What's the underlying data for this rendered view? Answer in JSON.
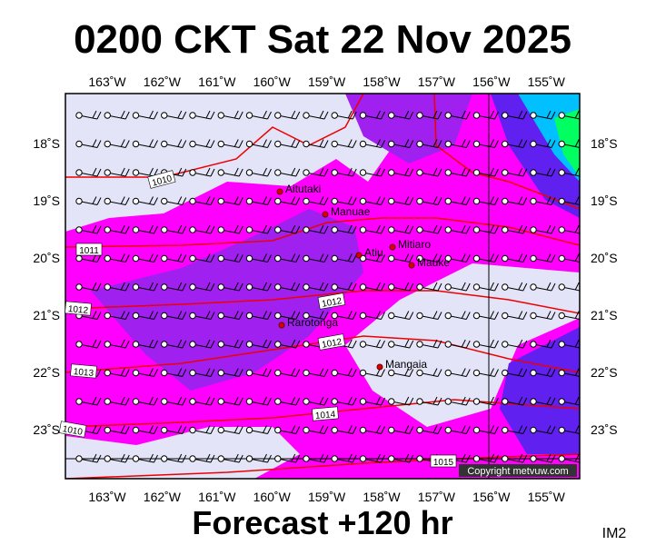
{
  "header": {
    "title": "0200 CKT Sat 22 Nov 2025"
  },
  "footer": {
    "forecast": "Forecast +120 hr",
    "image_id": "IM2"
  },
  "map": {
    "longitude_labels": [
      "163˚W",
      "162˚W",
      "161˚W",
      "160˚W",
      "159˚W",
      "158˚W",
      "157˚W",
      "156˚W",
      "155˚W"
    ],
    "latitude_labels": [
      "18˚S",
      "19˚S",
      "20˚S",
      "21˚S",
      "22˚S",
      "23˚S"
    ],
    "places": [
      "Aitutaki",
      "Manuae",
      "Atiu",
      "Mitiaro",
      "Mauke",
      "Rarotonga",
      "Mangaia"
    ],
    "isobar_labels": [
      "1010",
      "1011",
      "1012",
      "1012",
      "1012",
      "1013",
      "1014",
      "1015",
      "1010"
    ],
    "copyright": "Copyright metvuw.com"
  }
}
